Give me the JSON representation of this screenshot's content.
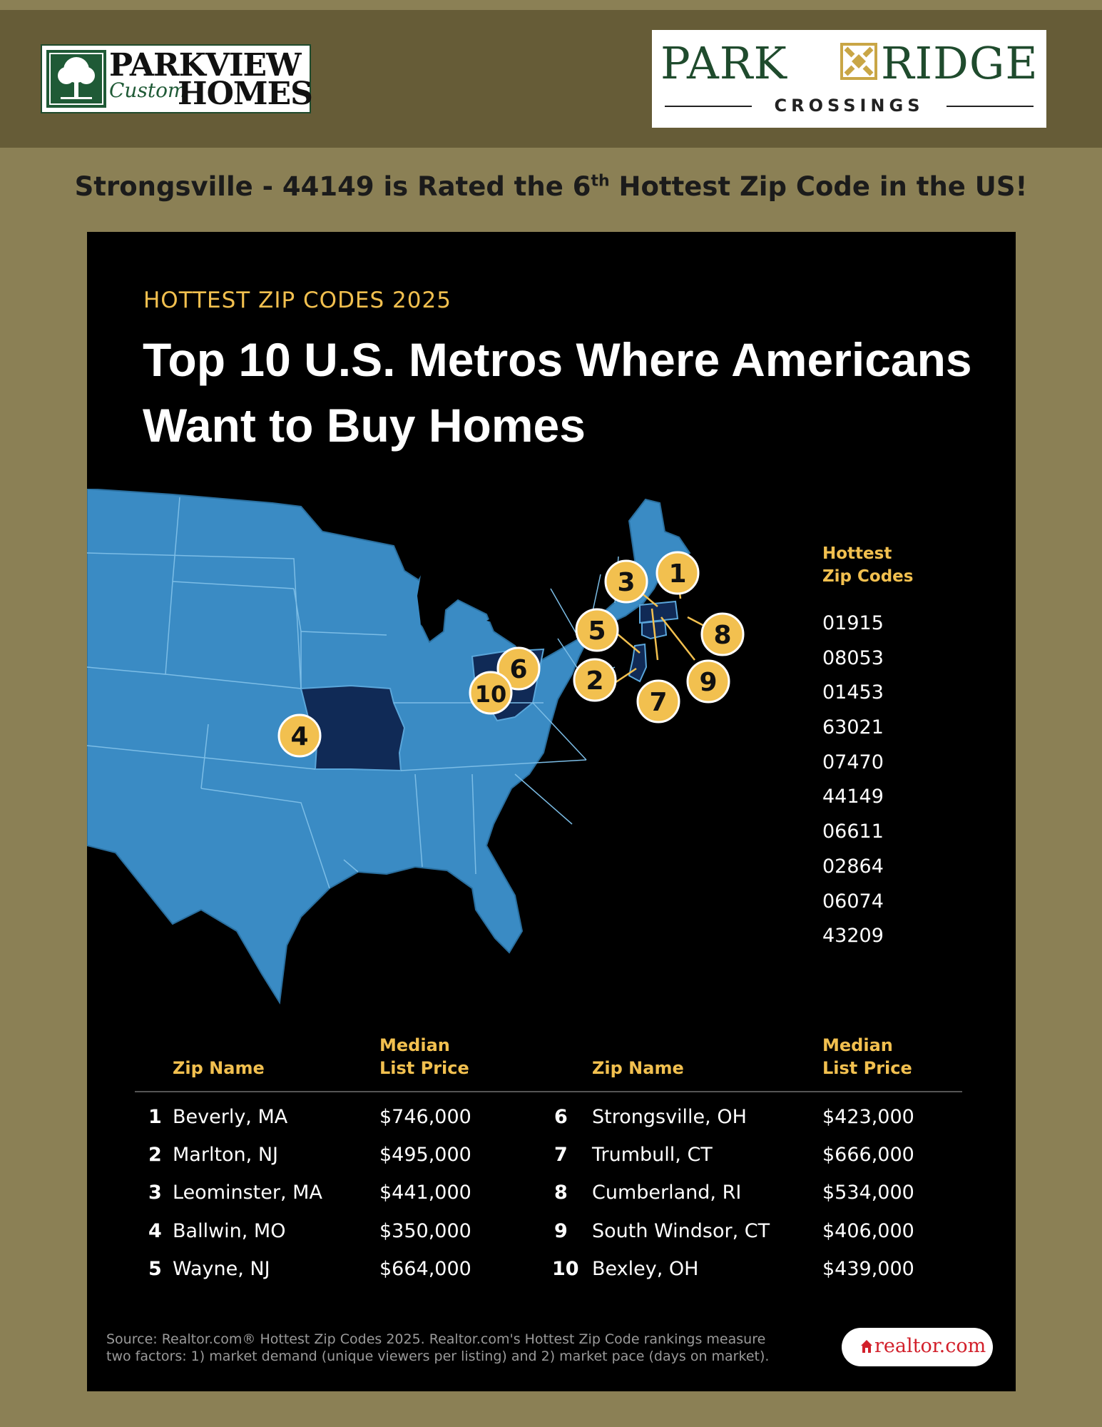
{
  "header": {
    "left_logo": {
      "line1": "PARKVIEW",
      "line2": "Custom",
      "line3": "HOMES"
    },
    "right_logo": {
      "word_left": "PARK",
      "word_right": "RIDGE",
      "subtitle": "CROSSINGS"
    }
  },
  "headline": {
    "before": "Strongsville - 44149 is Rated the 6",
    "sup": "th",
    "after": " Hottest Zip Code in the US!"
  },
  "infographic": {
    "kicker": "HOTTEST ZIP CODES 2025",
    "title": "Top 10 U.S. Metros Where Americans Want to Buy Homes",
    "legend_title_1": "Hottest",
    "legend_title_2": "Zip Codes",
    "zip_codes": [
      "01915",
      "08053",
      "01453",
      "63021",
      "07470",
      "44149",
      "06611",
      "02864",
      "06074",
      "43209"
    ],
    "markers": [
      "1",
      "2",
      "3",
      "4",
      "5",
      "6",
      "7",
      "8",
      "9",
      "10"
    ],
    "table": {
      "col_zip": "Zip Name",
      "col_price_1": "Median",
      "col_price_2": "List Price",
      "rows": [
        {
          "rank": "1",
          "name": "Beverly, MA",
          "price": "$746,000"
        },
        {
          "rank": "2",
          "name": "Marlton, NJ",
          "price": "$495,000"
        },
        {
          "rank": "3",
          "name": "Leominster, MA",
          "price": "$441,000"
        },
        {
          "rank": "4",
          "name": "Ballwin, MO",
          "price": "$350,000"
        },
        {
          "rank": "5",
          "name": "Wayne, NJ",
          "price": "$664,000"
        },
        {
          "rank": "6",
          "name": "Strongsville, OH",
          "price": "$423,000"
        },
        {
          "rank": "7",
          "name": "Trumbull, CT",
          "price": "$666,000"
        },
        {
          "rank": "8",
          "name": "Cumberland, RI",
          "price": "$534,000"
        },
        {
          "rank": "9",
          "name": "South Windsor, CT",
          "price": "$406,000"
        },
        {
          "rank": "10",
          "name": "Bexley, OH",
          "price": "$439,000"
        }
      ]
    },
    "source_line_1": "Source: Realtor.com® Hottest Zip Codes 2025.  Realtor.com's Hottest Zip Code rankings measure",
    "source_line_2": "two factors: 1) market demand (unique viewers per listing) and 2) market pace (days on market).",
    "brand": "realtor.com"
  },
  "colors": {
    "gold": "#f2c04f",
    "map_blue": "#3a8bc4",
    "highlight_navy": "#102a56",
    "background_olive": "#8b8055",
    "header_band": "#665c37"
  }
}
